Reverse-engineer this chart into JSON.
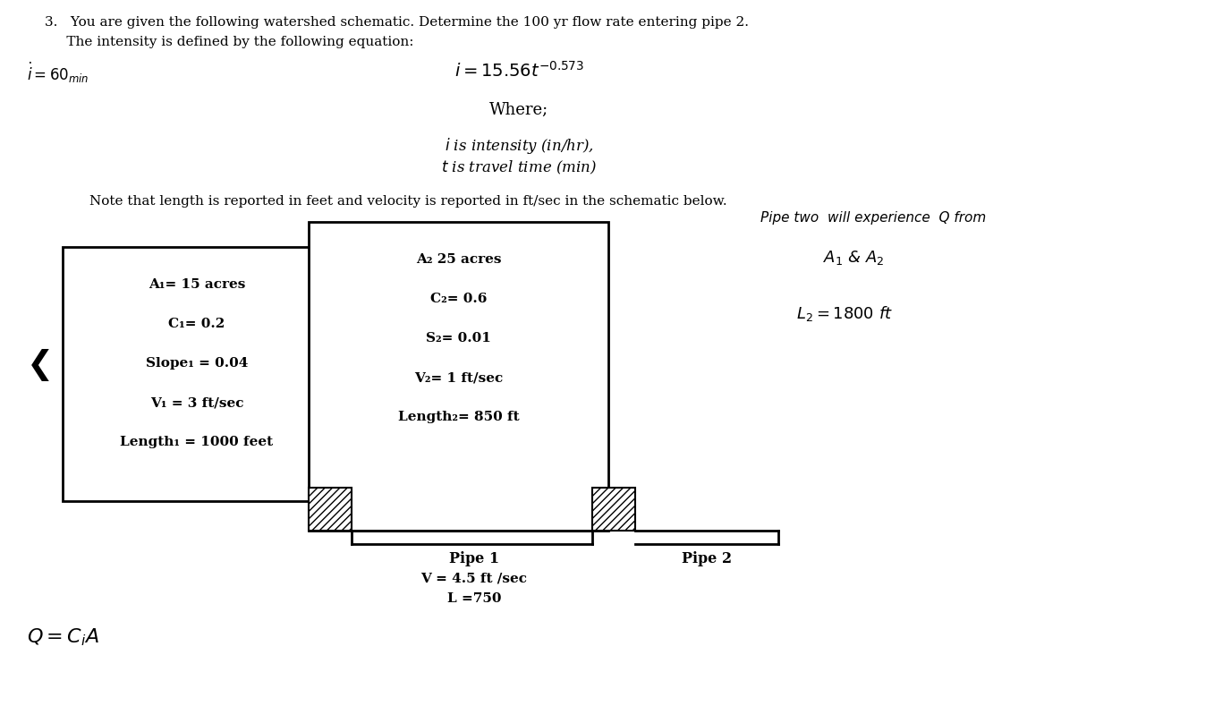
{
  "bg_color": "#ffffff",
  "title_line1": "3.   You are given the following watershed schematic. Determine the 100 yr flow rate entering pipe 2.",
  "title_line2": "     The intensity is defined by the following equation:",
  "box1_lines": [
    "A₁= 15 acres",
    "C₁= 0.2",
    "Slope₁ = 0.04",
    "V₁ = 3 ft/sec",
    "Length₁ = 1000 feet"
  ],
  "box2_lines": [
    "A₂ 25 acres",
    "C₂= 0.6",
    "S₂= 0.01",
    "V₂= 1 ft/sec",
    "Length₂= 850 ft"
  ],
  "pipe1_label": "Pipe 1",
  "pipe1_v": "V = 4.5 ft /sec",
  "pipe1_l": "L =750",
  "pipe2_label": "Pipe 2",
  "note_text": "Note that length is reported in feet and velocity is reported in ft/sec in the schematic below."
}
